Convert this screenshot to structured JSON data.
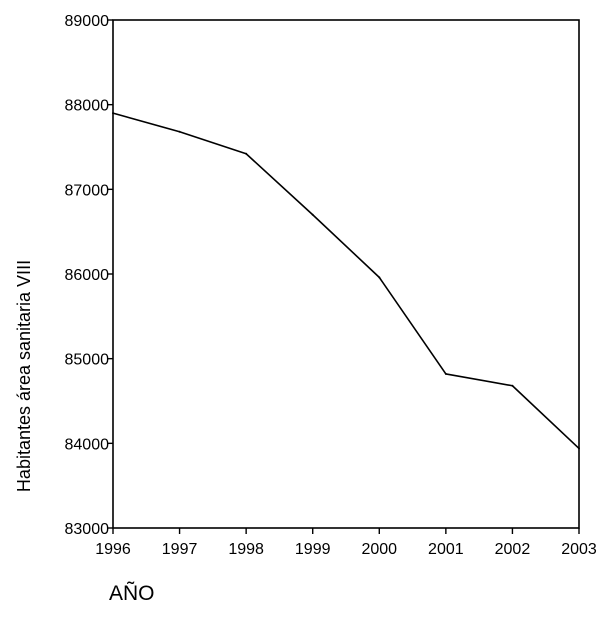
{
  "chart_data": {
    "type": "line",
    "title": "",
    "xlabel": "AÑO",
    "ylabel": "Habitantes área sanitaria VIII",
    "x": [
      1996,
      1997,
      1998,
      1999,
      2000,
      2001,
      2002,
      2003
    ],
    "series": [
      {
        "values": [
          87900,
          87680,
          87420,
          86700,
          85960,
          84820,
          84680,
          83940
        ]
      }
    ],
    "xlim": [
      1996,
      2003
    ],
    "ylim": [
      83000,
      89000
    ],
    "xticks": [
      "1996",
      "1997",
      "1998",
      "1999",
      "2000",
      "2001",
      "2002",
      "2003"
    ],
    "yticks": [
      "83000",
      "84000",
      "85000",
      "86000",
      "87000",
      "88000",
      "89000"
    ],
    "grid": false,
    "line_color": "#000000"
  }
}
